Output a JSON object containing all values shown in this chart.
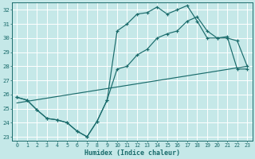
{
  "xlabel": "Humidex (Indice chaleur)",
  "xlim": [
    -0.5,
    23.5
  ],
  "ylim": [
    22.7,
    32.5
  ],
  "xticks": [
    0,
    1,
    2,
    3,
    4,
    5,
    6,
    7,
    8,
    9,
    10,
    11,
    12,
    13,
    14,
    15,
    16,
    17,
    18,
    19,
    20,
    21,
    22,
    23
  ],
  "yticks": [
    23,
    24,
    25,
    26,
    27,
    28,
    29,
    30,
    31,
    32
  ],
  "bg_color": "#c5e8e8",
  "grid_color": "#b0d8d8",
  "line_color": "#1a6b6b",
  "curve1_x": [
    0,
    1,
    2,
    3,
    4,
    5,
    6,
    7,
    8,
    9,
    10,
    11,
    12,
    13,
    14,
    15,
    16,
    17,
    18,
    19,
    20,
    21,
    22,
    23
  ],
  "curve1_y": [
    25.8,
    25.6,
    24.9,
    24.3,
    24.2,
    24.0,
    23.4,
    23.0,
    24.1,
    25.6,
    30.5,
    31.0,
    31.7,
    31.8,
    32.2,
    31.7,
    32.0,
    32.3,
    31.2,
    30.0,
    30.0,
    30.1,
    27.8,
    27.8
  ],
  "curve2_x": [
    0,
    1,
    2,
    3,
    4,
    5,
    6,
    7,
    8,
    9,
    10,
    11,
    12,
    13,
    14,
    15,
    16,
    17,
    18,
    19,
    20,
    21,
    22,
    23
  ],
  "curve2_y": [
    25.8,
    25.6,
    24.9,
    24.3,
    24.2,
    24.0,
    23.4,
    23.0,
    24.1,
    25.6,
    27.8,
    28.0,
    28.8,
    29.2,
    30.0,
    30.3,
    30.5,
    31.2,
    31.5,
    30.5,
    30.0,
    30.0,
    29.8,
    28.0
  ],
  "curve3_x": [
    0,
    23
  ],
  "curve3_y": [
    25.4,
    28.0
  ]
}
